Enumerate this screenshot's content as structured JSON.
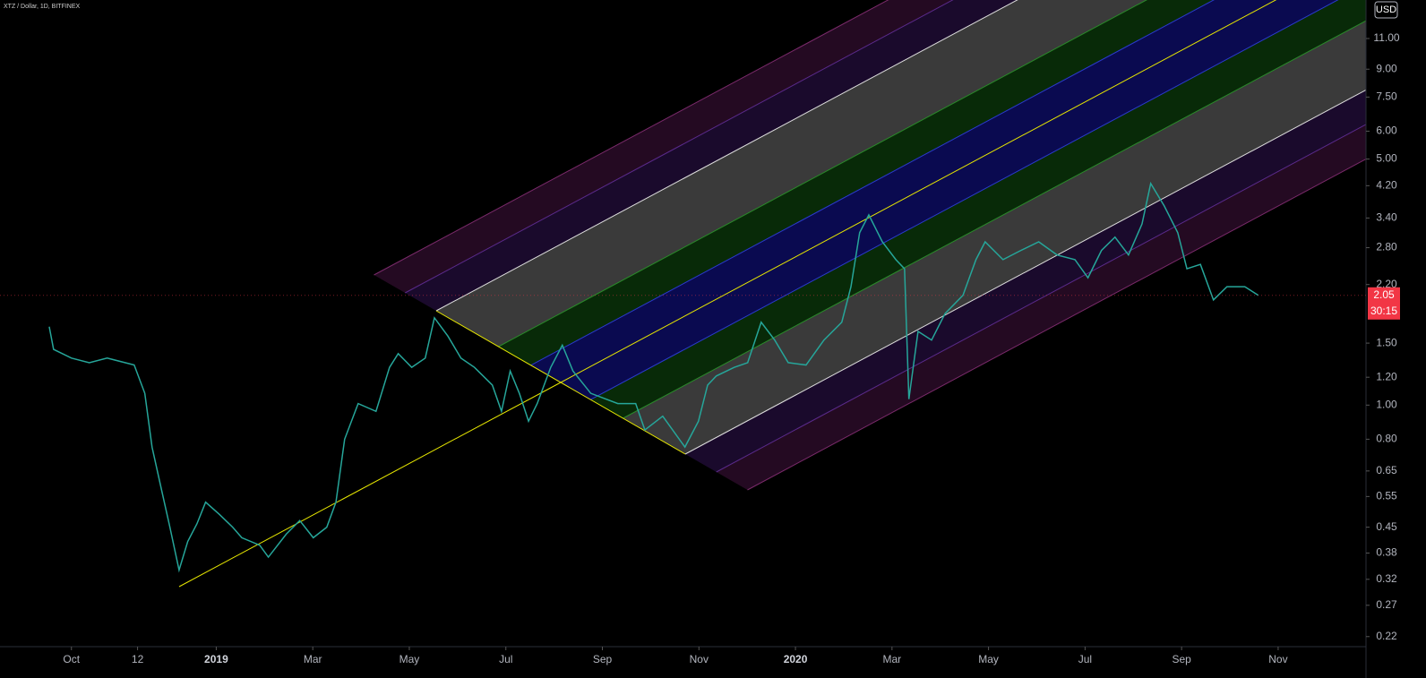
{
  "chart_data": {
    "type": "line",
    "title": "XTZ / Dollar, 1D, BITFINEX",
    "currency": "USD",
    "log_scale": true,
    "color": "#26a69a",
    "x": [
      8.54,
      8.63,
      9.0,
      9.37,
      9.74,
      10.3,
      10.52,
      10.67,
      10.86,
      11.04,
      11.23,
      11.41,
      11.6,
      11.78,
      12.06,
      12.34,
      12.53,
      12.9,
      13.08,
      13.45,
      13.73,
      14.01,
      14.29,
      14.48,
      14.66,
      14.94,
      15.31,
      15.59,
      15.77,
      16.05,
      16.33,
      16.52,
      16.8,
      17.07,
      17.35,
      17.72,
      17.91,
      18.09,
      18.28,
      18.47,
      18.65,
      18.93,
      19.17,
      19.39,
      19.76,
      20.32,
      20.69,
      20.88,
      21.25,
      21.71,
      21.99,
      22.18,
      22.36,
      22.73,
      23.01,
      23.29,
      23.57,
      23.85,
      24.22,
      24.59,
      24.96,
      25.15,
      25.33,
      25.52,
      25.8,
      26.08,
      26.26,
      26.35,
      26.54,
      26.82,
      27.1,
      27.47,
      27.74,
      27.93,
      28.3,
      28.67,
      29.04,
      29.42,
      29.79,
      30.06,
      30.34,
      30.62,
      30.9,
      31.18,
      31.36,
      31.64,
      31.92,
      32.11,
      32.39,
      32.66,
      32.94,
      33.31,
      33.59
    ],
    "values": [
      1.67,
      1.44,
      1.36,
      1.32,
      1.36,
      1.3,
      1.08,
      0.76,
      0.58,
      0.45,
      0.34,
      0.41,
      0.46,
      0.53,
      0.49,
      0.45,
      0.42,
      0.4,
      0.37,
      0.43,
      0.47,
      0.42,
      0.45,
      0.53,
      0.8,
      1.01,
      0.96,
      1.28,
      1.4,
      1.28,
      1.36,
      1.77,
      1.57,
      1.36,
      1.28,
      1.14,
      0.96,
      1.25,
      1.08,
      0.9,
      1.01,
      1.28,
      1.48,
      1.25,
      1.08,
      1.01,
      1.01,
      0.85,
      0.93,
      0.76,
      0.9,
      1.14,
      1.21,
      1.28,
      1.32,
      1.72,
      1.53,
      1.32,
      1.3,
      1.53,
      1.72,
      2.17,
      3.09,
      3.47,
      2.91,
      2.59,
      2.44,
      1.04,
      1.62,
      1.53,
      1.82,
      2.05,
      2.59,
      2.91,
      2.59,
      2.75,
      2.91,
      2.67,
      2.59,
      2.3,
      2.75,
      3.0,
      2.67,
      3.27,
      4.26,
      3.68,
      3.09,
      2.44,
      2.51,
      1.99,
      2.17,
      2.17,
      2.05
    ],
    "last_price": {
      "value": 2.05,
      "label": "2.05"
    },
    "countdown": "30:15",
    "xlim": [
      7.52,
      35.82
    ],
    "xticks": [
      {
        "value": 9,
        "label": "Oct"
      },
      {
        "value": 10.37,
        "label": "12"
      },
      {
        "value": 12,
        "label": "2019"
      },
      {
        "value": 14,
        "label": "Mar"
      },
      {
        "value": 16,
        "label": "May"
      },
      {
        "value": 18,
        "label": "Jul"
      },
      {
        "value": 20,
        "label": "Sep"
      },
      {
        "value": 22,
        "label": "Nov"
      },
      {
        "value": 24,
        "label": "2020"
      },
      {
        "value": 26,
        "label": "Mar"
      },
      {
        "value": 28,
        "label": "May"
      },
      {
        "value": 30,
        "label": "Jul"
      },
      {
        "value": 32,
        "label": "Sep"
      },
      {
        "value": 34,
        "label": "Nov"
      }
    ],
    "ylim": [
      0.206,
      14.15
    ],
    "yticks": [
      {
        "value": 11,
        "label": "11.00"
      },
      {
        "value": 9,
        "label": "9.00"
      },
      {
        "value": 7.5,
        "label": "7.50"
      },
      {
        "value": 6,
        "label": "6.00"
      },
      {
        "value": 5,
        "label": "5.00"
      },
      {
        "value": 4.2,
        "label": "4.20"
      },
      {
        "value": 3.4,
        "label": "3.40"
      },
      {
        "value": 2.8,
        "label": "2.80"
      },
      {
        "value": 2.2,
        "label": "2.20"
      },
      {
        "value": 1.5,
        "label": "1.50"
      },
      {
        "value": 1.2,
        "label": "1.20"
      },
      {
        "value": 1,
        "label": "1.00"
      },
      {
        "value": 0.8,
        "label": "0.80"
      },
      {
        "value": 0.65,
        "label": "0.65"
      },
      {
        "value": 0.55,
        "label": "0.55"
      },
      {
        "value": 0.45,
        "label": "0.45"
      },
      {
        "value": 0.38,
        "label": "0.38"
      },
      {
        "value": 0.32,
        "label": "0.32"
      },
      {
        "value": 0.27,
        "label": "0.27"
      },
      {
        "value": 0.22,
        "label": "0.22"
      }
    ]
  }
}
